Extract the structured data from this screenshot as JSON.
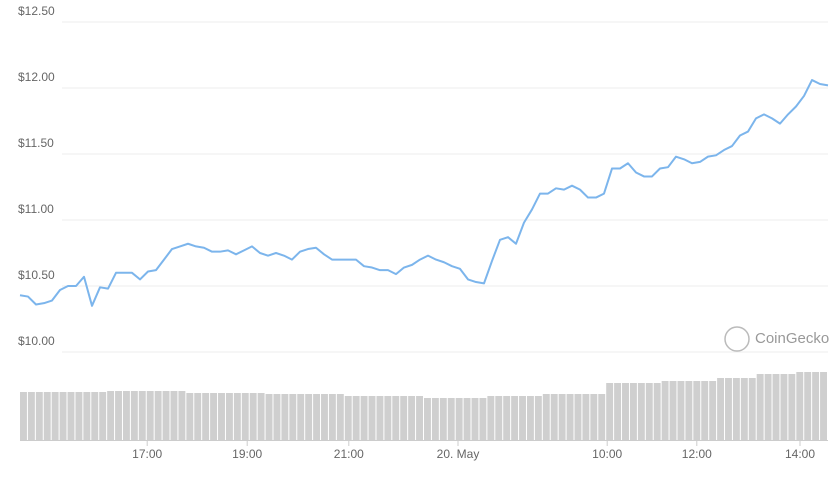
{
  "chart_data": {
    "type": "line",
    "color": "#7cb5ec",
    "grid": true,
    "values": [
      10.43,
      10.42,
      10.36,
      10.37,
      10.39,
      10.47,
      10.5,
      10.5,
      10.57,
      10.35,
      10.49,
      10.48,
      10.6,
      10.6,
      10.6,
      10.55,
      10.61,
      10.62,
      10.7,
      10.78,
      10.8,
      10.82,
      10.8,
      10.79,
      10.76,
      10.76,
      10.77,
      10.74,
      10.77,
      10.8,
      10.75,
      10.73,
      10.75,
      10.73,
      10.7,
      10.76,
      10.78,
      10.79,
      10.74,
      10.7,
      10.7,
      10.7,
      10.7,
      10.65,
      10.64,
      10.62,
      10.62,
      10.59,
      10.64,
      10.66,
      10.7,
      10.73,
      10.7,
      10.68,
      10.65,
      10.63,
      10.55,
      10.53,
      10.52,
      10.69,
      10.85,
      10.87,
      10.82,
      10.98,
      11.08,
      11.2,
      11.2,
      11.24,
      11.23,
      11.26,
      11.23,
      11.17,
      11.17,
      11.2,
      11.39,
      11.39,
      11.43,
      11.36,
      11.33,
      11.33,
      11.39,
      11.4,
      11.48,
      11.46,
      11.43,
      11.44,
      11.48,
      11.49,
      11.53,
      11.56,
      11.64,
      11.67,
      11.77,
      11.8,
      11.77,
      11.73,
      11.8,
      11.86,
      11.94,
      12.06,
      12.03,
      12.02
    ],
    "xlim": [
      0,
      101
    ],
    "xticks": [
      {
        "value": 15.9,
        "label": "17:00"
      },
      {
        "value": 28.4,
        "label": "19:00"
      },
      {
        "value": 41.1,
        "label": "21:00"
      },
      {
        "value": 54.75,
        "label": "20. May"
      },
      {
        "value": 73.4,
        "label": "10:00"
      },
      {
        "value": 84.6,
        "label": "12:00"
      },
      {
        "value": 97.5,
        "label": "14:00"
      }
    ],
    "ylim": [
      10.0,
      12.5
    ],
    "yticks": [
      {
        "value": 10.0,
        "label": "$10.00"
      },
      {
        "value": 10.5,
        "label": "$10.50"
      },
      {
        "value": 11.0,
        "label": "$11.00"
      },
      {
        "value": 11.5,
        "label": "$11.50"
      },
      {
        "value": 12.0,
        "label": "$12.00"
      },
      {
        "value": 12.5,
        "label": "$12.50"
      }
    ],
    "volume": {
      "color": "#cfcfcf",
      "values": [
        48,
        48,
        48,
        48,
        48,
        48,
        48,
        48,
        48,
        48,
        48,
        49,
        49,
        49,
        49,
        49,
        49,
        49,
        49,
        49,
        49,
        47,
        47,
        47,
        47,
        47,
        47,
        47,
        47,
        47,
        47,
        46,
        46,
        46,
        46,
        46,
        46,
        46,
        46,
        46,
        46,
        44,
        44,
        44,
        44,
        44,
        44,
        44,
        44,
        44,
        44,
        42,
        42,
        42,
        42,
        42,
        42,
        42,
        42,
        44,
        44,
        44,
        44,
        44,
        44,
        44,
        46,
        46,
        46,
        46,
        46,
        46,
        46,
        46,
        57,
        57,
        57,
        57,
        57,
        57,
        57,
        59,
        59,
        59,
        59,
        59,
        59,
        59,
        62,
        62,
        62,
        62,
        62,
        66,
        66,
        66,
        66,
        66,
        68,
        68,
        68,
        68
      ]
    },
    "watermark": "CoinGecko"
  }
}
